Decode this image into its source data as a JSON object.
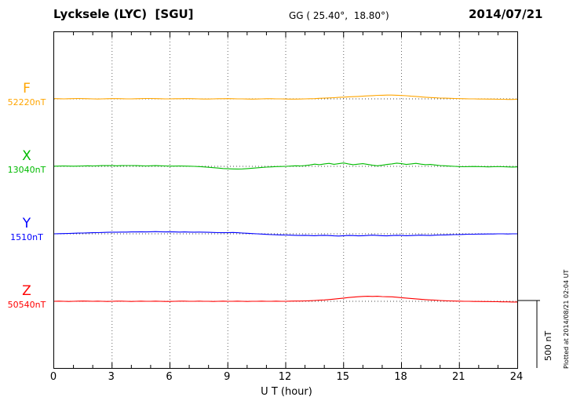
{
  "header": {
    "title": "Lycksele (LYC)  [SGU]",
    "coords": "GG ( 25.40°,  18.80°)",
    "date": "2014/07/21"
  },
  "footer": {
    "xlabel": "U T (hour)"
  },
  "side": {
    "scale_label": "500 nT",
    "plotted_at": "Plotted at 2014/08/21 02:04 UT"
  },
  "chart_data": {
    "type": "line",
    "title": "Lycksele (LYC) magnetogram 2014/07/21",
    "xlabel": "U T (hour)",
    "x_range": [
      0,
      24
    ],
    "x_ticks": [
      0,
      3,
      6,
      9,
      12,
      15,
      18,
      21,
      24
    ],
    "x_tick_labels": [
      "0",
      "3",
      "6",
      "9",
      "12",
      "15",
      "18",
      "21",
      "24"
    ],
    "sample_step_hours": 0.25,
    "scale_bar_nT": 500,
    "grid": "dotted-vertical-every-3h",
    "series": [
      {
        "name": "F",
        "base_label": "52220nT",
        "base_nT": 52220,
        "color": "#FFA500",
        "values": [
          2,
          1,
          0,
          1,
          2,
          3,
          2,
          1,
          0,
          -1,
          0,
          1,
          2,
          2,
          1,
          0,
          0,
          1,
          2,
          3,
          3,
          2,
          1,
          0,
          0,
          1,
          1,
          2,
          2,
          1,
          0,
          -1,
          -1,
          0,
          1,
          1,
          2,
          1,
          0,
          0,
          -1,
          -2,
          -1,
          0,
          1,
          1,
          0,
          0,
          -1,
          -2,
          -2,
          -1,
          0,
          1,
          2,
          4,
          5,
          7,
          9,
          11,
          13,
          15,
          16,
          18,
          20,
          22,
          24,
          26,
          27,
          28,
          28,
          27,
          25,
          23,
          20,
          18,
          15,
          12,
          10,
          8,
          6,
          5,
          4,
          3,
          2,
          1,
          0,
          0,
          -1,
          -1,
          -2,
          -2,
          -3,
          -3,
          -4,
          -4,
          -3
        ]
      },
      {
        "name": "X",
        "base_label": "13040nT",
        "base_nT": 13040,
        "color": "#00BB00",
        "values": [
          1,
          2,
          3,
          2,
          1,
          2,
          3,
          4,
          3,
          4,
          5,
          6,
          5,
          4,
          5,
          6,
          6,
          5,
          4,
          3,
          4,
          5,
          4,
          3,
          2,
          2,
          3,
          2,
          1,
          0,
          -2,
          -4,
          -7,
          -10,
          -13,
          -16,
          -18,
          -19,
          -20,
          -19,
          -17,
          -14,
          -11,
          -8,
          -6,
          -4,
          -2,
          -1,
          0,
          2,
          4,
          3,
          5,
          10,
          16,
          12,
          18,
          22,
          15,
          20,
          25,
          18,
          12,
          16,
          20,
          14,
          8,
          4,
          8,
          14,
          18,
          24,
          20,
          14,
          18,
          22,
          16,
          12,
          14,
          10,
          6,
          4,
          2,
          0,
          -2,
          -3,
          -2,
          -1,
          -2,
          -3,
          -4,
          -3,
          -2,
          -3,
          -4,
          -5,
          -4
        ]
      },
      {
        "name": "Y",
        "base_label": "1510nT",
        "base_nT": 1510,
        "color": "#0000FF",
        "values": [
          0,
          1,
          2,
          3,
          4,
          5,
          6,
          7,
          8,
          9,
          10,
          11,
          12,
          12,
          13,
          13,
          14,
          14,
          15,
          14,
          15,
          16,
          15,
          14,
          15,
          14,
          13,
          14,
          13,
          12,
          13,
          12,
          11,
          10,
          9,
          8,
          9,
          10,
          8,
          6,
          4,
          2,
          0,
          -2,
          -4,
          -6,
          -7,
          -8,
          -9,
          -10,
          -11,
          -12,
          -11,
          -13,
          -14,
          -12,
          -11,
          -13,
          -15,
          -16,
          -14,
          -12,
          -13,
          -15,
          -14,
          -12,
          -10,
          -12,
          -14,
          -15,
          -13,
          -11,
          -12,
          -14,
          -13,
          -11,
          -10,
          -11,
          -12,
          -10,
          -9,
          -8,
          -7,
          -6,
          -5,
          -4,
          -3,
          -3,
          -2,
          -2,
          -1,
          -1,
          0,
          0,
          -1,
          0,
          0
        ]
      },
      {
        "name": "Z",
        "base_label": "50540nT",
        "base_nT": 50540,
        "color": "#FF0000",
        "values": [
          0,
          1,
          0,
          -1,
          0,
          1,
          2,
          1,
          0,
          1,
          0,
          -1,
          0,
          1,
          1,
          0,
          -1,
          0,
          1,
          0,
          0,
          1,
          0,
          -1,
          -1,
          0,
          1,
          1,
          0,
          0,
          1,
          0,
          0,
          -1,
          0,
          1,
          0,
          0,
          1,
          0,
          -1,
          0,
          0,
          1,
          0,
          0,
          1,
          0,
          0,
          1,
          2,
          2,
          3,
          4,
          6,
          8,
          10,
          13,
          16,
          20,
          24,
          28,
          31,
          34,
          36,
          37,
          36,
          37,
          35,
          34,
          33,
          30,
          27,
          24,
          21,
          18,
          15,
          12,
          10,
          8,
          6,
          4,
          3,
          2,
          1,
          0,
          0,
          -1,
          -1,
          -2,
          -2,
          -3,
          -3,
          -4,
          -4,
          -5,
          -5
        ]
      }
    ]
  }
}
